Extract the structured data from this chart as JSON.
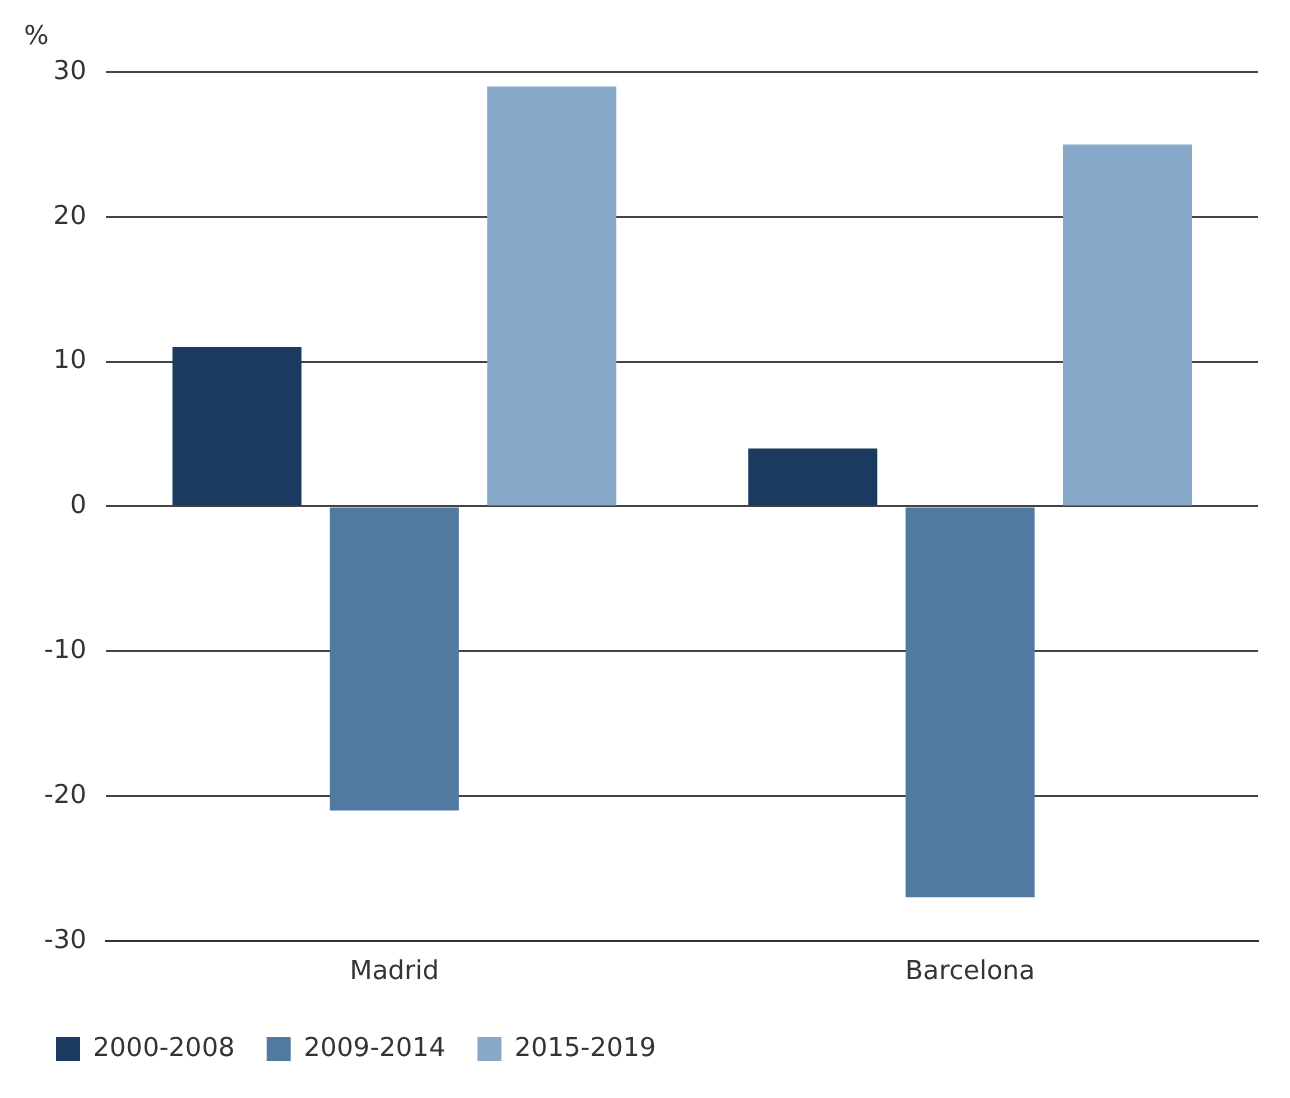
{
  "chart_data": {
    "type": "bar",
    "ylabel": "%",
    "categories": [
      "Madrid",
      "Barcelona"
    ],
    "series": [
      {
        "name": "2000-2008",
        "color": "#1b3a5f",
        "values": [
          11,
          4
        ]
      },
      {
        "name": "2009-2014",
        "color": "#52799f",
        "values": [
          -21,
          -27
        ]
      },
      {
        "name": "2015-2019",
        "color": "#86a9ca",
        "values": [
          29,
          25
        ]
      }
    ],
    "ylim": [
      -30,
      30
    ],
    "yticks": [
      -30,
      -20,
      -10,
      0,
      10,
      20,
      30
    ],
    "grid": "y",
    "legend": "bottom left"
  }
}
